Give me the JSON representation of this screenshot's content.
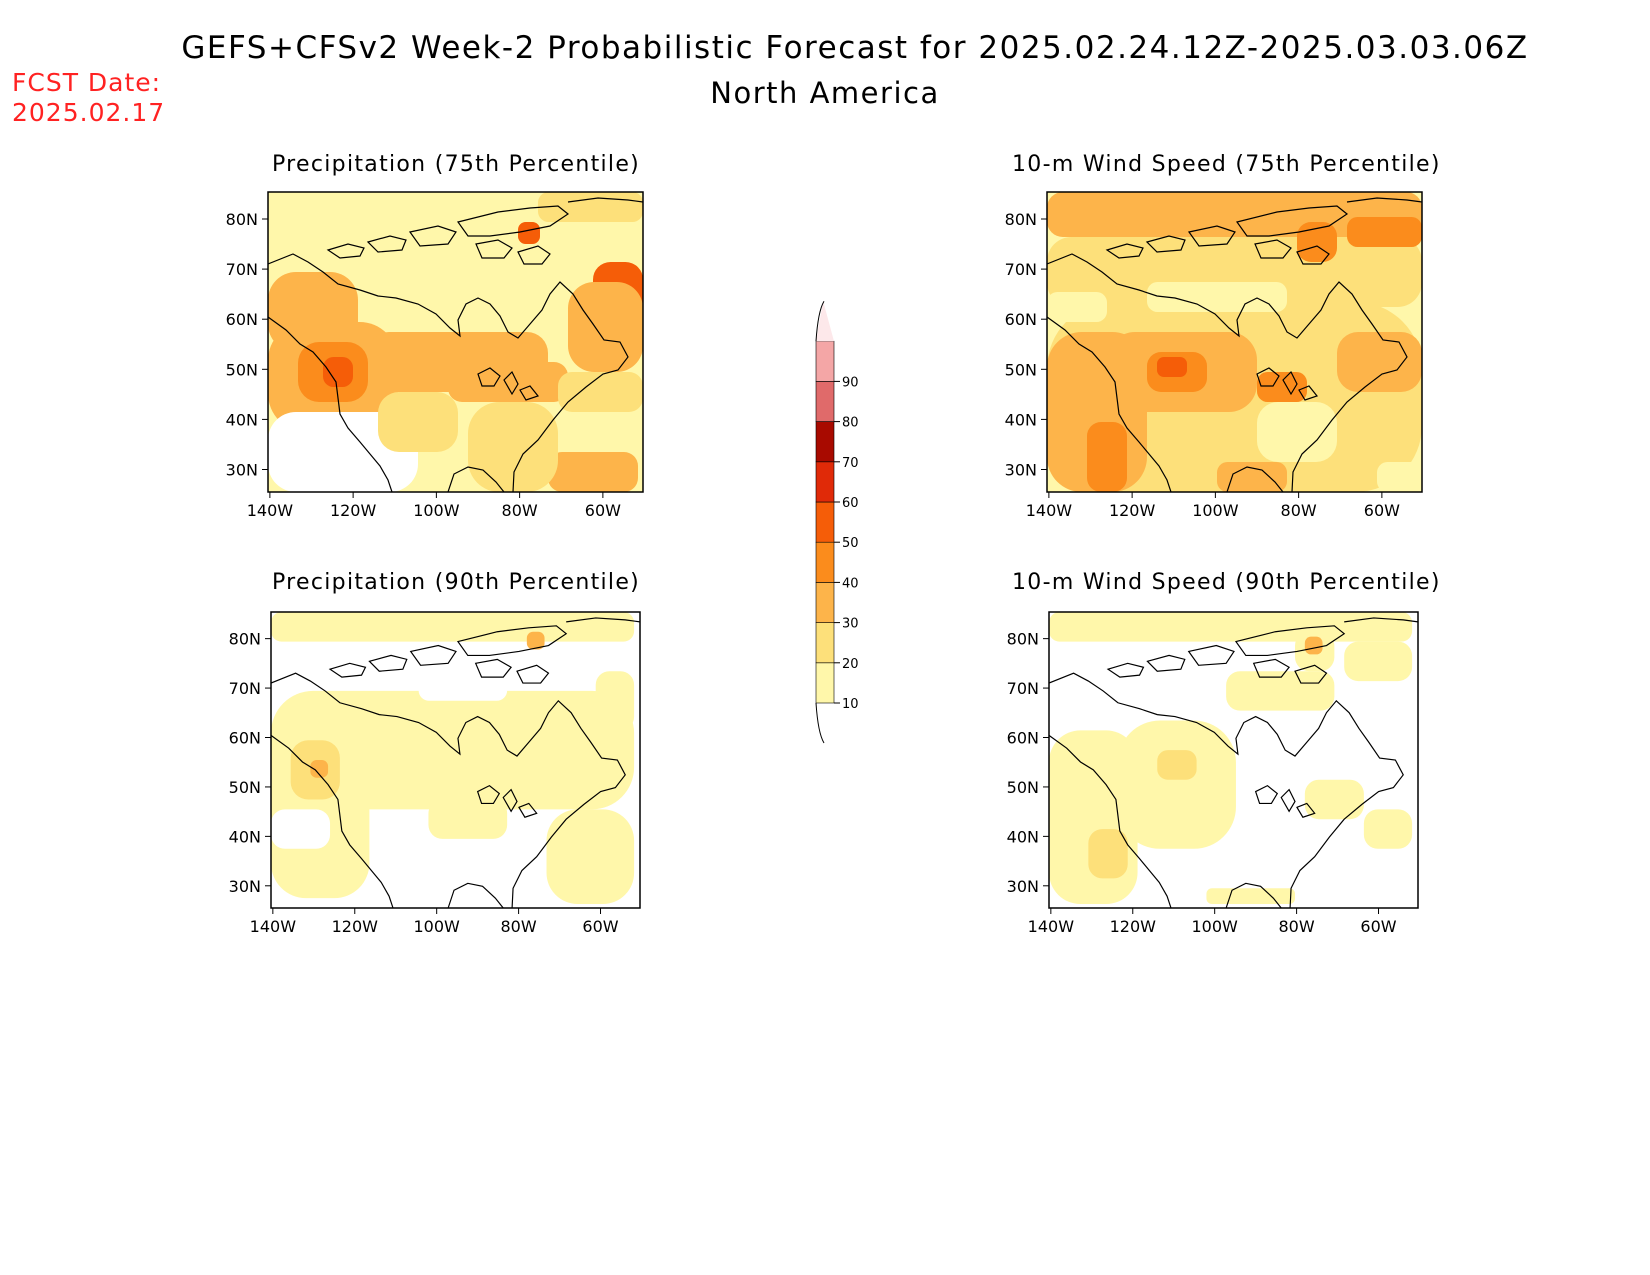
{
  "header": {
    "title": "GEFS+CFSv2 Week-2 Probabilistic Forecast for 2025.02.24.12Z-2025.03.03.06Z",
    "subtitle": "North America",
    "fcst_label": "FCST Date:",
    "fcst_date": "2025.02.17"
  },
  "panels": [
    {
      "title": "Precipitation (75th Percentile)"
    },
    {
      "title": "10-m Wind Speed (75th Percentile)"
    },
    {
      "title": "Precipitation (90th Percentile)"
    },
    {
      "title": "10-m Wind Speed (90th Percentile)"
    }
  ],
  "axes": {
    "lon_ticks": [
      "140W",
      "120W",
      "100W",
      "80W",
      "60W"
    ],
    "lat_ticks": [
      "80N",
      "70N",
      "60N",
      "50N",
      "40N",
      "30N"
    ]
  },
  "colorbar": {
    "levels": [
      "10",
      "20",
      "30",
      "40",
      "50",
      "60",
      "70",
      "80",
      "90"
    ],
    "colors": [
      "#fff7aa",
      "#fde07a",
      "#fdb44a",
      "#fb8c1c",
      "#f55d08",
      "#e02a08",
      "#a80a00",
      "#e06a6a",
      "#f4a6a6",
      "#fde8ea"
    ]
  },
  "colors": {
    "fcst_text": "#ff2222"
  }
}
